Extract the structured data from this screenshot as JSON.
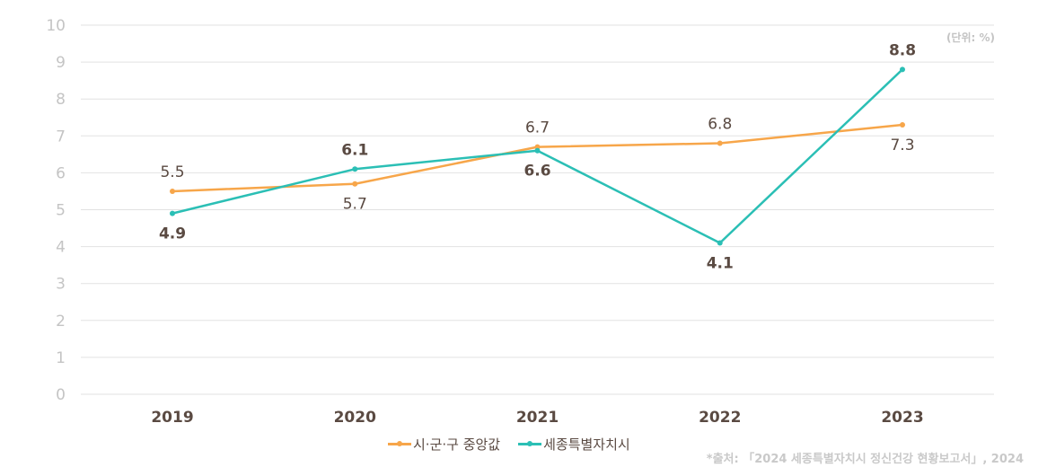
{
  "chart_data": {
    "type": "line",
    "title": "",
    "unit_note": "(단위: %)",
    "xlabel": "",
    "ylabel": "",
    "categories": [
      "2019",
      "2020",
      "2021",
      "2022",
      "2023"
    ],
    "ylim": [
      0,
      10
    ],
    "yticks": [
      "0",
      "1",
      "2",
      "3",
      "4",
      "5",
      "6",
      "7",
      "8",
      "9",
      "10"
    ],
    "grid": true,
    "legend_position": "bottom-center",
    "series": [
      {
        "name": "시·군·구 중앙값",
        "color": "#f7a64a",
        "values": [
          5.5,
          5.7,
          6.7,
          6.8,
          7.3
        ],
        "labels": [
          "5.5",
          "5.7",
          "6.7",
          "6.8",
          "7.3"
        ],
        "label_positions": [
          "above",
          "below",
          "above",
          "above",
          "below"
        ]
      },
      {
        "name": "세종특별자치시",
        "color": "#2bbfb5",
        "values": [
          4.9,
          6.1,
          6.6,
          4.1,
          8.8
        ],
        "labels": [
          "4.9",
          "6.1",
          "6.6",
          "4.1",
          "8.8"
        ],
        "label_positions": [
          "below",
          "above",
          "below",
          "below",
          "above"
        ]
      }
    ],
    "source": "*출처: 「2024 세종특별자치시 정신건강 현황보고서」, 2024"
  }
}
